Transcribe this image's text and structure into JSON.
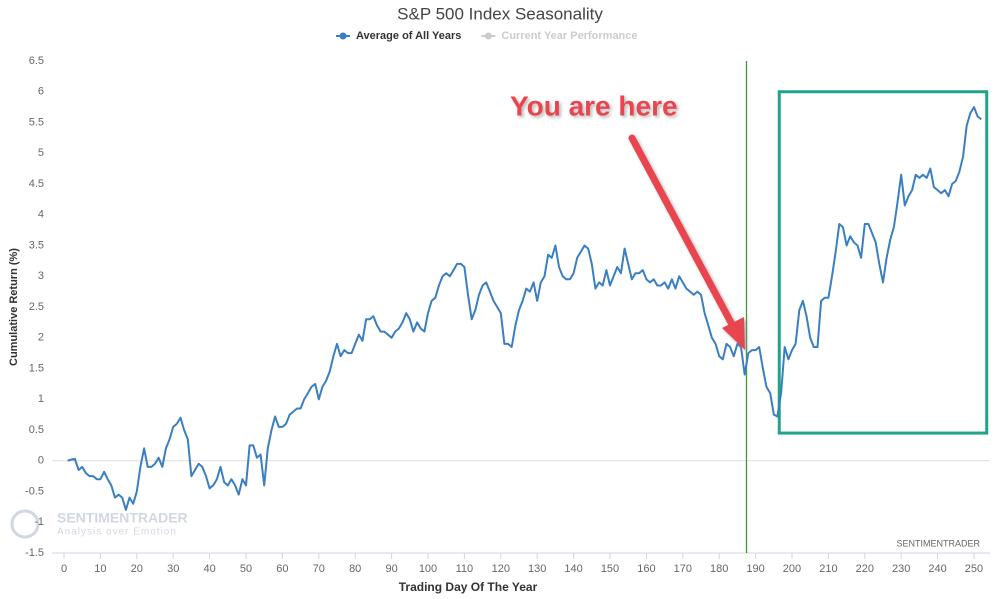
{
  "chart_data": {
    "type": "line",
    "title": "S&P 500 Index Seasonality",
    "x_label": "Trading Day Of The Year",
    "y_label": "Cumulative Return (%)",
    "x": [
      1,
      2,
      3,
      4,
      5,
      6,
      7,
      8,
      9,
      10,
      11,
      12,
      13,
      14,
      15,
      16,
      17,
      18,
      19,
      20,
      21,
      22,
      23,
      24,
      25,
      26,
      27,
      28,
      29,
      30,
      31,
      32,
      33,
      34,
      35,
      36,
      37,
      38,
      39,
      40,
      41,
      42,
      43,
      44,
      45,
      46,
      47,
      48,
      49,
      50,
      51,
      52,
      53,
      54,
      55,
      56,
      57,
      58,
      59,
      60,
      61,
      62,
      63,
      64,
      65,
      66,
      67,
      68,
      69,
      70,
      71,
      72,
      73,
      74,
      75,
      76,
      77,
      78,
      79,
      80,
      81,
      82,
      83,
      84,
      85,
      86,
      87,
      88,
      89,
      90,
      91,
      92,
      93,
      94,
      95,
      96,
      97,
      98,
      99,
      100,
      101,
      102,
      103,
      104,
      105,
      106,
      107,
      108,
      109,
      110,
      111,
      112,
      113,
      114,
      115,
      116,
      117,
      118,
      119,
      120,
      121,
      122,
      123,
      124,
      125,
      126,
      127,
      128,
      129,
      130,
      131,
      132,
      133,
      134,
      135,
      136,
      137,
      138,
      139,
      140,
      141,
      142,
      143,
      144,
      145,
      146,
      147,
      148,
      149,
      150,
      151,
      152,
      153,
      154,
      155,
      156,
      157,
      158,
      159,
      160,
      161,
      162,
      163,
      164,
      165,
      166,
      167,
      168,
      169,
      170,
      171,
      172,
      173,
      174,
      175,
      176,
      177,
      178,
      179,
      180,
      181,
      182,
      183,
      184,
      185,
      186,
      187,
      188,
      189,
      190,
      191,
      192,
      193,
      194,
      195,
      196,
      197,
      198,
      199,
      200,
      201,
      202,
      203,
      204,
      205,
      206,
      207,
      208,
      209,
      210,
      211,
      212,
      213,
      214,
      215,
      216,
      217,
      218,
      219,
      220,
      221,
      222,
      223,
      224,
      225,
      226,
      227,
      228,
      229,
      230,
      231,
      232,
      233,
      234,
      235,
      236,
      237,
      238,
      239,
      240,
      241,
      242,
      243,
      244,
      245,
      246,
      247,
      248,
      249,
      250,
      251,
      252
    ],
    "series": [
      {
        "name": "Average of All Years",
        "color": "#3a7fc1",
        "values": [
          0,
          0.02,
          0.03,
          -0.15,
          -0.1,
          -0.2,
          -0.25,
          -0.25,
          -0.3,
          -0.3,
          -0.18,
          -0.3,
          -0.4,
          -0.6,
          -0.55,
          -0.6,
          -0.8,
          -0.6,
          -0.7,
          -0.5,
          -0.1,
          0.2,
          -0.1,
          -0.1,
          -0.05,
          0.05,
          -0.1,
          0.2,
          0.35,
          0.55,
          0.6,
          0.7,
          0.5,
          0.35,
          -0.25,
          -0.15,
          -0.05,
          -0.1,
          -0.25,
          -0.45,
          -0.4,
          -0.3,
          -0.1,
          -0.35,
          -0.4,
          -0.3,
          -0.4,
          -0.55,
          -0.3,
          -0.4,
          0.25,
          0.25,
          0.05,
          0.1,
          -0.4,
          0.2,
          0.5,
          0.72,
          0.55,
          0.55,
          0.6,
          0.75,
          0.8,
          0.85,
          0.85,
          1.0,
          1.1,
          1.2,
          1.25,
          1.0,
          1.2,
          1.3,
          1.45,
          1.7,
          1.9,
          1.7,
          1.8,
          1.75,
          1.75,
          1.9,
          2.05,
          1.95,
          2.3,
          2.3,
          2.35,
          2.2,
          2.1,
          2.1,
          2.05,
          2.0,
          2.1,
          2.15,
          2.25,
          2.4,
          2.3,
          2.1,
          2.25,
          2.15,
          2.1,
          2.4,
          2.6,
          2.65,
          2.85,
          3.0,
          3.05,
          3.0,
          3.1,
          3.2,
          3.2,
          3.15,
          2.7,
          2.3,
          2.45,
          2.7,
          2.85,
          2.9,
          2.75,
          2.6,
          2.5,
          2.4,
          1.9,
          1.9,
          1.85,
          2.2,
          2.45,
          2.6,
          2.8,
          2.75,
          2.9,
          2.6,
          2.9,
          3.0,
          3.35,
          3.3,
          3.5,
          3.15,
          3.0,
          2.95,
          2.95,
          3.05,
          3.3,
          3.4,
          3.5,
          3.45,
          3.2,
          2.8,
          2.9,
          2.85,
          3.1,
          2.85,
          3.0,
          3.15,
          3.05,
          3.45,
          3.2,
          2.95,
          3.05,
          3.05,
          3.1,
          2.95,
          2.9,
          2.95,
          2.85,
          2.85,
          2.9,
          2.8,
          2.95,
          2.8,
          3.0,
          2.9,
          2.8,
          2.75,
          2.7,
          2.75,
          2.7,
          2.4,
          2.2,
          2.0,
          1.9,
          1.7,
          1.65,
          1.9,
          1.85,
          1.7,
          1.9,
          1.85,
          1.4,
          1.75,
          1.8,
          1.8,
          1.85,
          1.5,
          1.2,
          1.1,
          0.75,
          0.72,
          1.1,
          1.85,
          1.65,
          1.8,
          1.9,
          2.45,
          2.6,
          2.35,
          2.0,
          1.85,
          1.85,
          2.6,
          2.65,
          2.65,
          3.0,
          3.4,
          3.85,
          3.8,
          3.5,
          3.65,
          3.55,
          3.5,
          3.3,
          3.85,
          3.85,
          3.7,
          3.55,
          3.2,
          2.9,
          3.3,
          3.6,
          3.8,
          4.2,
          4.65,
          4.15,
          4.3,
          4.4,
          4.65,
          4.6,
          4.65,
          4.6,
          4.75,
          4.45,
          4.4,
          4.35,
          4.4,
          4.3,
          4.5,
          4.55,
          4.7,
          4.95,
          5.45,
          5.65,
          5.75,
          5.6,
          5.55
        ]
      },
      {
        "name": "Current Year Performance",
        "color": "#cccccc",
        "visible": false
      }
    ],
    "xlim": [
      -3.3,
      254.4
    ],
    "ylim": [
      -1.5,
      6.5
    ],
    "xticks": [
      0,
      10,
      20,
      30,
      40,
      50,
      60,
      70,
      80,
      90,
      100,
      110,
      120,
      130,
      140,
      150,
      160,
      170,
      180,
      190,
      200,
      210,
      220,
      230,
      240,
      250
    ],
    "yticks": [
      -1.5,
      -1,
      -0.5,
      0,
      0.5,
      1,
      1.5,
      2,
      2.5,
      3,
      3.5,
      4,
      4.5,
      5,
      5.5,
      6,
      6.5
    ],
    "zero_line": true,
    "vline": {
      "x": 187.5,
      "color": "#3c9a3c"
    },
    "highlight_box": {
      "x": [
        196.5,
        253.5
      ],
      "y": [
        0.45,
        6.0
      ],
      "color": "#1fa38a"
    },
    "annotation": "You are here",
    "credit": "SENTIMENTRADER",
    "watermark": {
      "name": "SENTIMENTRADER",
      "tagline": "Analysis over Emotion"
    }
  }
}
